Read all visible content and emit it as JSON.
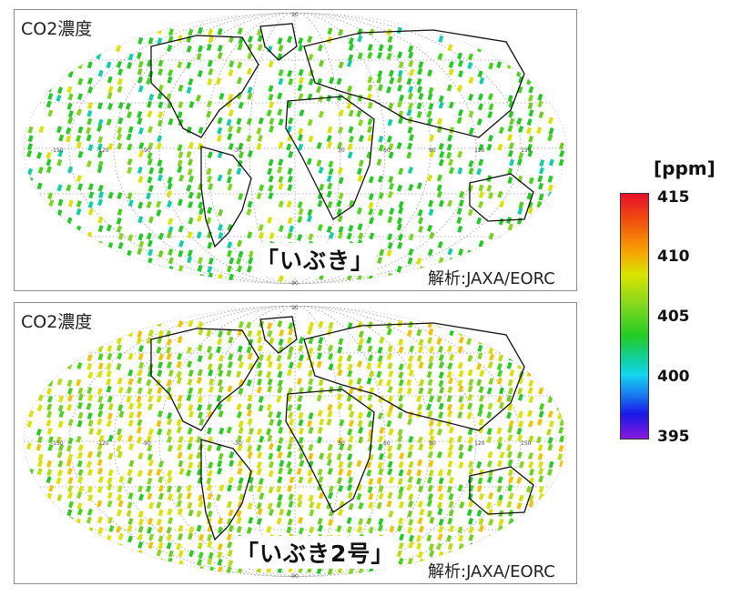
{
  "panels": [
    {
      "label": "CO2濃度",
      "satellite": "「いぶき」",
      "credit": "解析:JAXA/EORC"
    },
    {
      "label": "CO2濃度",
      "satellite": "「いぶき2号」",
      "credit": "解析:JAXA/EORC"
    }
  ],
  "colorbar": {
    "unit": "[ppm]",
    "ticks": [
      "415",
      "410",
      "405",
      "400",
      "395"
    ],
    "colors": [
      "#e8102a",
      "#f7a600",
      "#d9e400",
      "#22cc22",
      "#14d4f0",
      "#1a7cf0",
      "#8a18e0"
    ]
  },
  "map": {
    "projection": "Mollweide",
    "graticule_lon_labels": [
      "-150",
      "-120",
      "-90",
      "-30",
      "30",
      "60",
      "90",
      "120",
      "150"
    ],
    "graticule_lat_labels": [
      "90",
      "-90"
    ]
  }
}
